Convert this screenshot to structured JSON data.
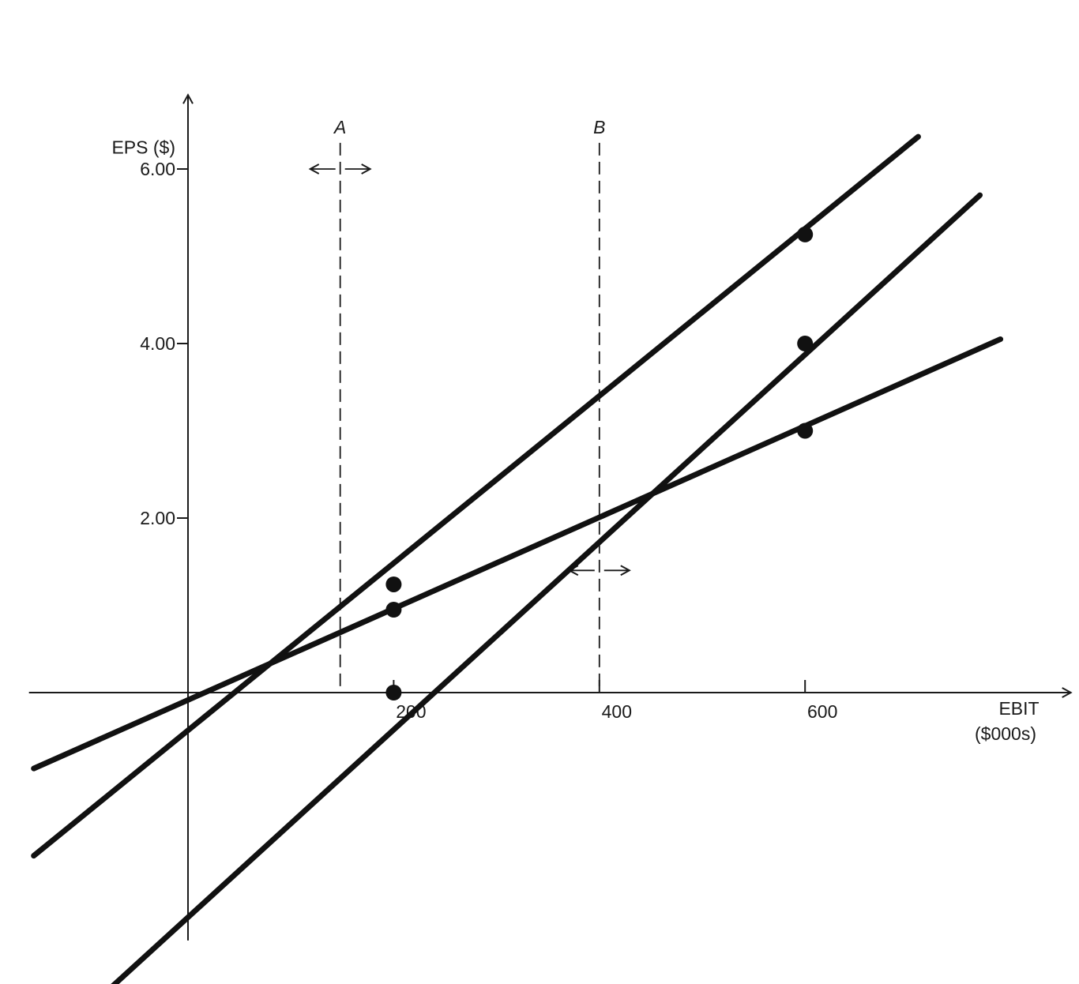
{
  "chart_data": {
    "type": "line",
    "title": "",
    "xlabel": "EBIT",
    "xlabel_unit": "($000s)",
    "ylabel": "EPS ($)",
    "xlim": [
      -160,
      840
    ],
    "ylim": [
      -2.75,
      7.5
    ],
    "x_ticks": [
      {
        "value": 200,
        "label": "200"
      },
      {
        "value": 400,
        "label": "400"
      },
      {
        "value": 600,
        "label": "600"
      }
    ],
    "y_ticks": [
      {
        "value": 2,
        "label": "2.00"
      },
      {
        "value": 4,
        "label": "4.00"
      },
      {
        "value": 6,
        "label": "6.00"
      }
    ],
    "grid": false,
    "legend": "none",
    "series": [
      {
        "x": [
          -150,
          710
        ],
        "y": [
          -1.87,
          6.37
        ],
        "markers": [
          {
            "x": 200,
            "y": 1.24
          },
          {
            "x": 600,
            "y": 5.25
          }
        ]
      },
      {
        "x": [
          -100,
          770
        ],
        "y": [
          -3.65,
          5.7
        ],
        "markers": [
          {
            "x": 200,
            "y": 0.0
          },
          {
            "x": 600,
            "y": 4.0
          }
        ]
      },
      {
        "x": [
          -150,
          790
        ],
        "y": [
          -0.87,
          4.05
        ],
        "markers": [
          {
            "x": 200,
            "y": 0.95
          },
          {
            "x": 600,
            "y": 3.0
          }
        ]
      }
    ],
    "reference_lines": [
      {
        "label": "A",
        "x": 148,
        "y_top": 6.3,
        "arrow_y": 6.0
      },
      {
        "label": "B",
        "x": 400,
        "y_top": 6.3,
        "arrow_y": 1.4
      }
    ]
  }
}
